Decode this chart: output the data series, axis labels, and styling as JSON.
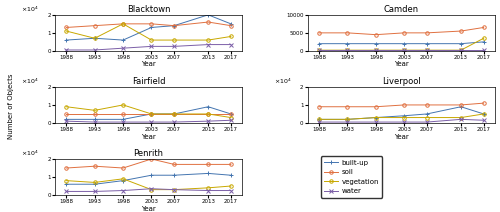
{
  "years": [
    1988,
    1993,
    1998,
    2003,
    2007,
    2013,
    2017
  ],
  "subplots": {
    "Blacktown": {
      "built-up": [
        6000,
        7000,
        6000,
        13000,
        14000,
        20000,
        15000
      ],
      "soil": [
        13000,
        14000,
        15000,
        15000,
        14000,
        16000,
        14000
      ],
      "vegetation": [
        11000,
        7000,
        15000,
        6000,
        6000,
        6000,
        8000
      ],
      "water": [
        500,
        500,
        1500,
        2500,
        2500,
        3500,
        3500
      ]
    },
    "Camden": {
      "built-up": [
        2000,
        2000,
        2000,
        2000,
        2000,
        2000,
        2500
      ],
      "soil": [
        5000,
        5000,
        4500,
        5000,
        5000,
        5500,
        6500
      ],
      "vegetation": [
        200,
        200,
        200,
        200,
        200,
        200,
        3500
      ],
      "water": [
        200,
        200,
        200,
        200,
        200,
        200,
        200
      ]
    },
    "Fairfield": {
      "built-up": [
        2000,
        2000,
        2000,
        5000,
        5000,
        9000,
        5000
      ],
      "soil": [
        5000,
        5000,
        5000,
        5000,
        5000,
        5000,
        5000
      ],
      "vegetation": [
        9000,
        7000,
        10000,
        5000,
        5000,
        5000,
        3000
      ],
      "water": [
        1000,
        500,
        500,
        500,
        500,
        1000,
        1500
      ]
    },
    "Liverpool": {
      "built-up": [
        2000,
        2000,
        3000,
        4000,
        5000,
        9000,
        5000
      ],
      "soil": [
        9000,
        9000,
        9000,
        10000,
        10000,
        10000,
        11000
      ],
      "vegetation": [
        2000,
        2000,
        3000,
        3000,
        3000,
        3000,
        5000
      ],
      "water": [
        500,
        500,
        500,
        500,
        500,
        2000,
        1500
      ]
    },
    "Penrith": {
      "built-up": [
        6000,
        6000,
        8000,
        11000,
        11000,
        12000,
        11000
      ],
      "soil": [
        15000,
        16000,
        15000,
        20000,
        17000,
        17000,
        17000
      ],
      "vegetation": [
        8000,
        7000,
        9000,
        3000,
        3000,
        4000,
        5000
      ],
      "water": [
        2000,
        2000,
        2500,
        3500,
        3000,
        2500,
        2500
      ]
    }
  },
  "colors": {
    "built-up": "#4475b0",
    "soil": "#e07040",
    "vegetation": "#c8a800",
    "water": "#7b5ea7"
  },
  "markers": {
    "built-up": "+",
    "soil": "o",
    "vegetation": "o",
    "water": "x"
  },
  "ylabel": "Number of Objects",
  "xlabel": "Year",
  "legend_labels": [
    "built-up",
    "soil",
    "vegetation",
    "water"
  ]
}
